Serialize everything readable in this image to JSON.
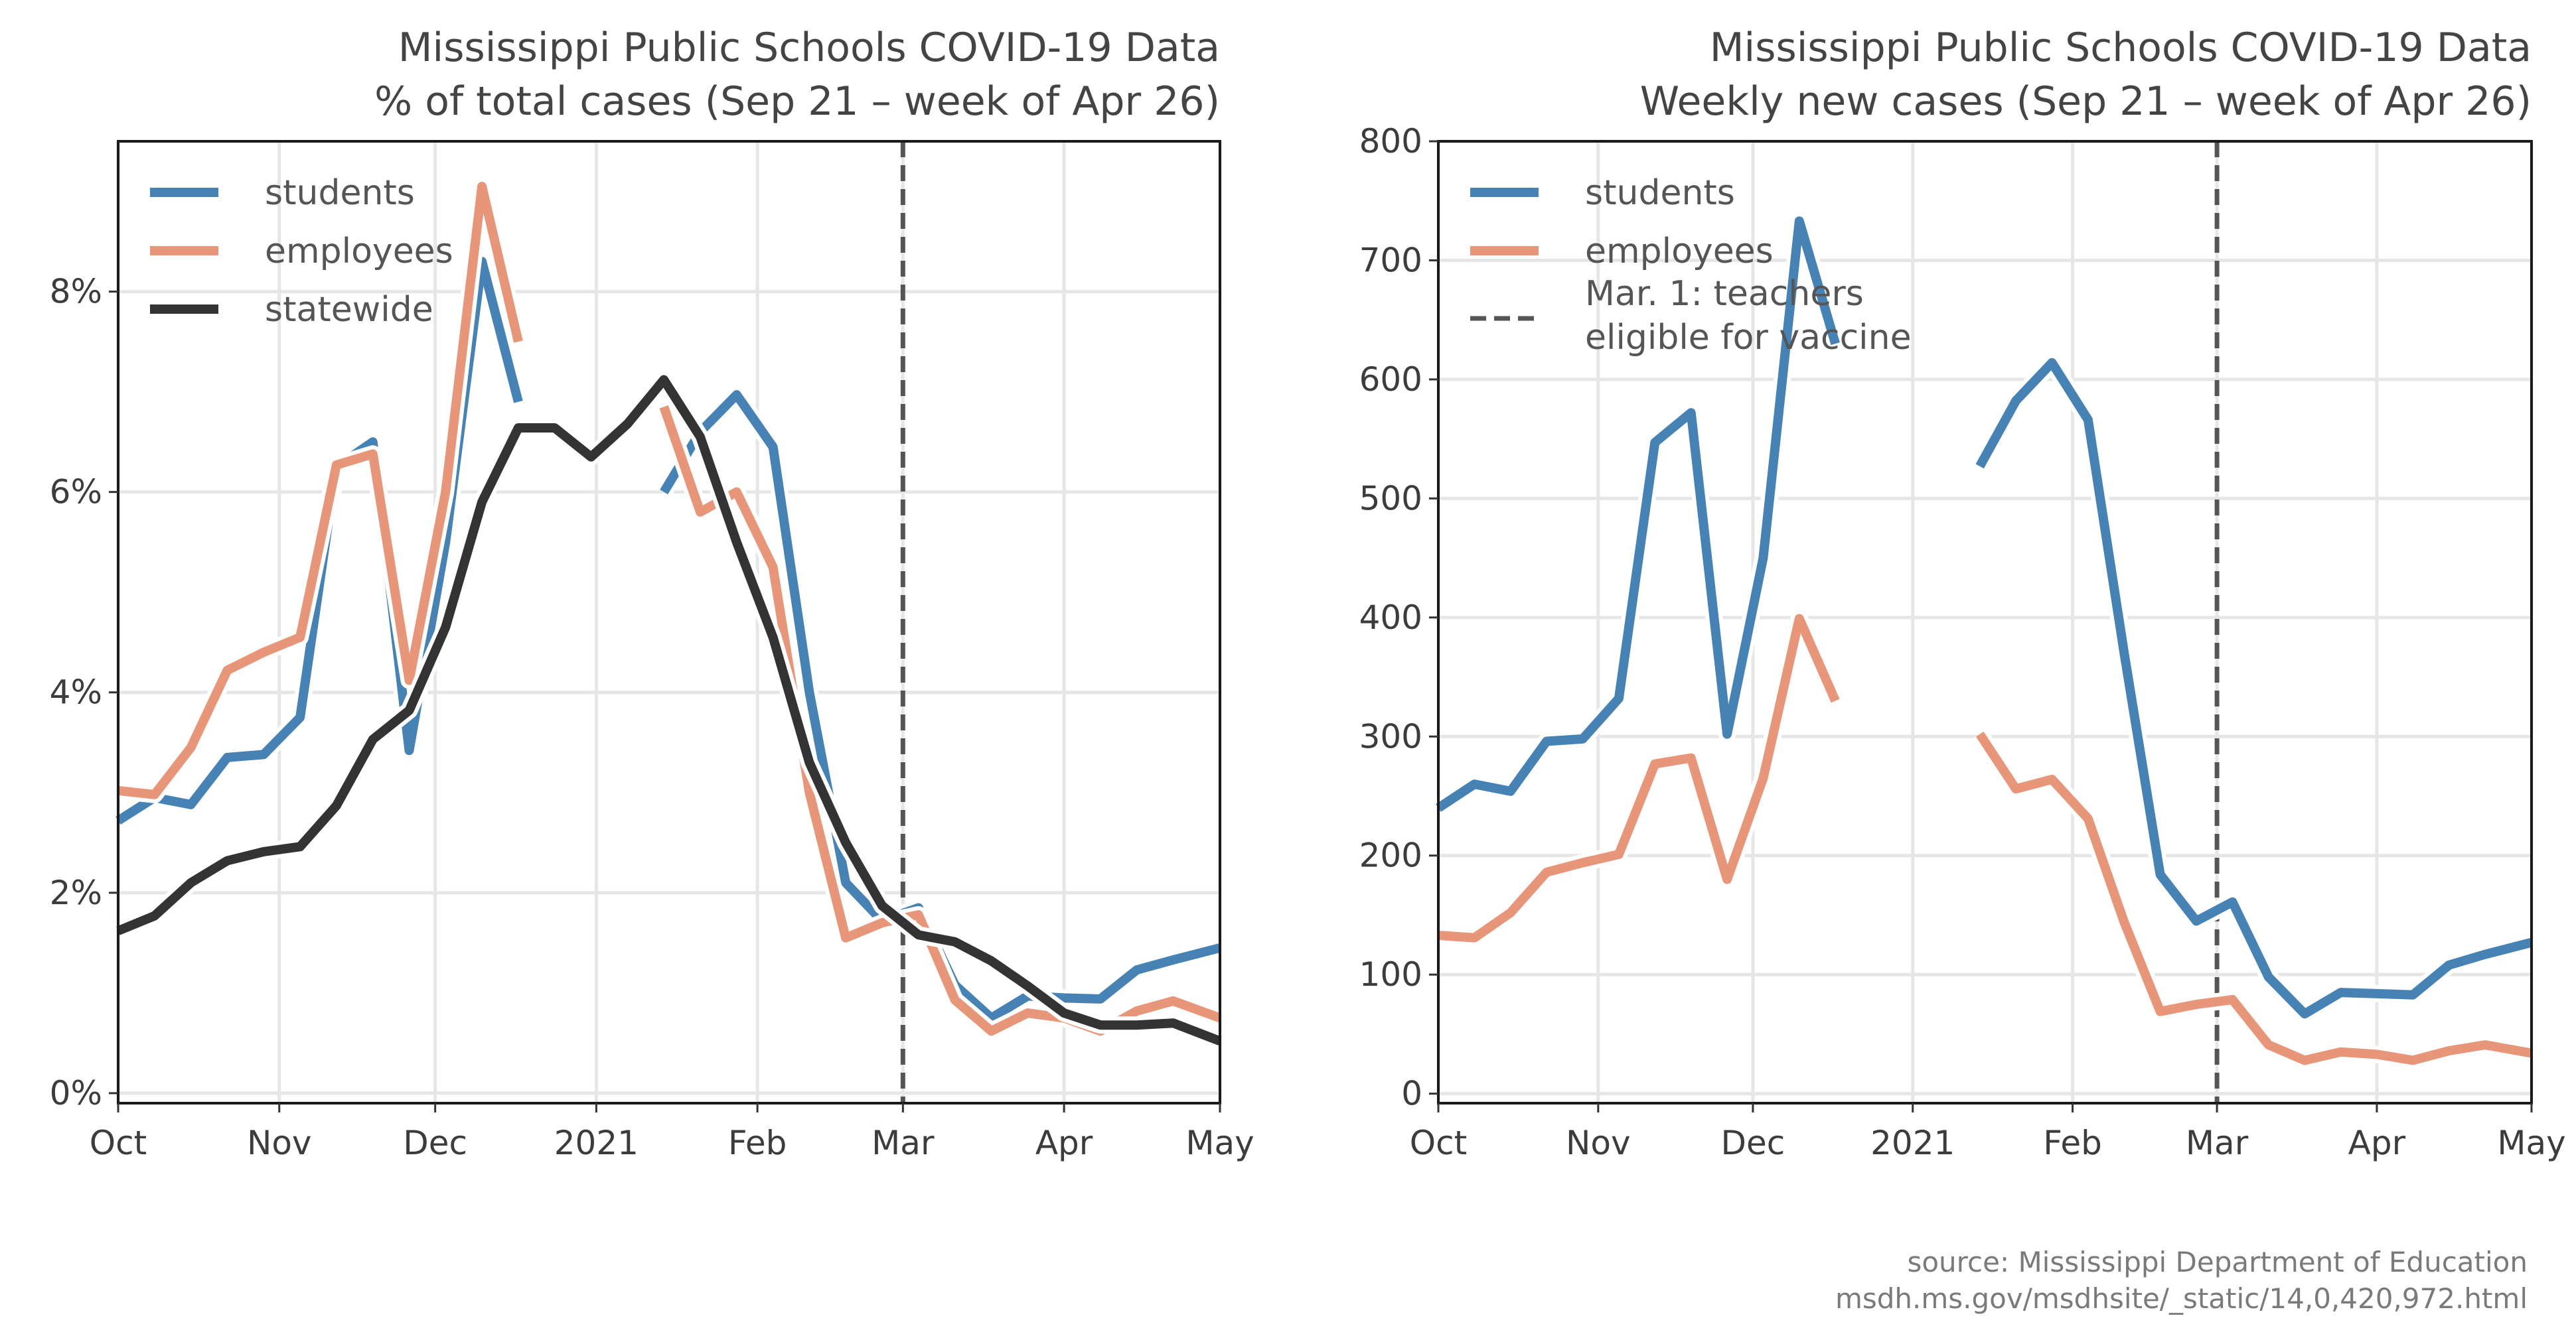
{
  "chart_data": [
    {
      "type": "line",
      "title": "Mississippi Public Schools COVID-19 Data",
      "subtitle": "% of total cases (Sep 21 – week of Apr 26)",
      "xlabel": "",
      "ylabel": "",
      "x_ticks": [
        "Oct",
        "Nov",
        "Dec",
        "2021",
        "Feb",
        "Mar",
        "Apr",
        "May"
      ],
      "y_ticks": [
        "0%",
        "2%",
        "4%",
        "6%",
        "8%"
      ],
      "ylim": [
        -0.1,
        9.5
      ],
      "xlim": [
        "2020-10-01",
        "2021-05-01"
      ],
      "grid": true,
      "legend": "top-left",
      "vline": {
        "date": "2021-03-01",
        "style": "dashed"
      },
      "series": [
        {
          "name": "students",
          "color": "#4682b4",
          "points": [
            [
              [
                "2020-10-01",
                2.72
              ],
              [
                "2020-10-08",
                2.95
              ],
              [
                "2020-10-15",
                2.88
              ],
              [
                "2020-10-22",
                3.35
              ],
              [
                "2020-10-29",
                3.38
              ],
              [
                "2020-11-05",
                3.75
              ],
              [
                "2020-11-12",
                6.25
              ],
              [
                "2020-11-19",
                6.5
              ],
              [
                "2020-11-26",
                3.42
              ],
              [
                "2020-12-03",
                5.5
              ],
              [
                "2020-12-10",
                8.3
              ],
              [
                "2020-12-17",
                6.9
              ]
            ],
            [
              [
                "2021-01-14",
                6.0
              ],
              [
                "2021-01-21",
                6.6
              ],
              [
                "2021-01-28",
                6.97
              ],
              [
                "2021-02-04",
                6.45
              ],
              [
                "2021-02-11",
                4.0
              ],
              [
                "2021-02-18",
                2.1
              ],
              [
                "2021-02-25",
                1.72
              ],
              [
                "2021-03-04",
                1.85
              ],
              [
                "2021-03-11",
                1.08
              ],
              [
                "2021-03-18",
                0.75
              ],
              [
                "2021-03-25",
                0.97
              ],
              [
                "2021-04-01",
                0.95
              ],
              [
                "2021-04-08",
                0.94
              ],
              [
                "2021-04-15",
                1.23
              ],
              [
                "2021-04-22",
                1.33
              ],
              [
                "2021-05-01",
                1.45
              ]
            ]
          ]
        },
        {
          "name": "employees",
          "color": "#e8967a",
          "points": [
            [
              [
                "2020-10-01",
                3.02
              ],
              [
                "2020-10-08",
                2.98
              ],
              [
                "2020-10-15",
                3.45
              ],
              [
                "2020-10-22",
                4.22
              ],
              [
                "2020-10-29",
                4.4
              ],
              [
                "2020-11-05",
                4.55
              ],
              [
                "2020-11-12",
                6.27
              ],
              [
                "2020-11-19",
                6.38
              ],
              [
                "2020-11-26",
                4.12
              ],
              [
                "2020-12-03",
                6.0
              ],
              [
                "2020-12-10",
                9.05
              ],
              [
                "2020-12-17",
                7.5
              ]
            ],
            [
              [
                "2021-01-14",
                6.85
              ],
              [
                "2021-01-21",
                5.8
              ],
              [
                "2021-01-28",
                6.0
              ],
              [
                "2021-02-04",
                5.25
              ],
              [
                "2021-02-11",
                3.0
              ],
              [
                "2021-02-18",
                1.55
              ],
              [
                "2021-02-25",
                1.7
              ],
              [
                "2021-03-04",
                1.78
              ],
              [
                "2021-03-11",
                0.93
              ],
              [
                "2021-03-18",
                0.62
              ],
              [
                "2021-03-25",
                0.8
              ],
              [
                "2021-04-01",
                0.75
              ],
              [
                "2021-04-08",
                0.62
              ],
              [
                "2021-04-15",
                0.82
              ],
              [
                "2021-04-22",
                0.92
              ],
              [
                "2021-05-01",
                0.75
              ]
            ]
          ]
        },
        {
          "name": "statewide",
          "color": "#333333",
          "points": [
            [
              [
                "2020-10-01",
                1.62
              ],
              [
                "2020-10-08",
                1.77
              ],
              [
                "2020-10-15",
                2.1
              ],
              [
                "2020-10-22",
                2.32
              ],
              [
                "2020-10-29",
                2.41
              ],
              [
                "2020-11-05",
                2.46
              ],
              [
                "2020-11-12",
                2.87
              ],
              [
                "2020-11-19",
                3.53
              ],
              [
                "2020-11-26",
                3.82
              ],
              [
                "2020-12-03",
                4.65
              ],
              [
                "2020-12-10",
                5.9
              ],
              [
                "2020-12-17",
                6.64
              ],
              [
                "2020-12-24",
                6.64
              ],
              [
                "2020-12-31",
                6.35
              ],
              [
                "2021-01-07",
                6.68
              ],
              [
                "2021-01-14",
                7.12
              ],
              [
                "2021-01-21",
                6.55
              ],
              [
                "2021-01-28",
                5.5
              ],
              [
                "2021-02-04",
                4.55
              ],
              [
                "2021-02-11",
                3.3
              ],
              [
                "2021-02-18",
                2.5
              ],
              [
                "2021-02-25",
                1.87
              ],
              [
                "2021-03-04",
                1.58
              ],
              [
                "2021-03-11",
                1.51
              ],
              [
                "2021-03-18",
                1.32
              ],
              [
                "2021-03-25",
                1.07
              ],
              [
                "2021-04-01",
                0.8
              ],
              [
                "2021-04-08",
                0.68
              ],
              [
                "2021-04-15",
                0.68
              ],
              [
                "2021-04-22",
                0.7
              ],
              [
                "2021-05-01",
                0.52
              ]
            ]
          ]
        }
      ]
    },
    {
      "type": "line",
      "title": "Mississippi Public Schools COVID-19 Data",
      "subtitle": "Weekly new cases (Sep 21 – week of Apr 26)",
      "xlabel": "",
      "ylabel": "",
      "x_ticks": [
        "Oct",
        "Nov",
        "Dec",
        "2021",
        "Feb",
        "Mar",
        "Apr",
        "May"
      ],
      "y_ticks": [
        "0",
        "100",
        "200",
        "300",
        "400",
        "500",
        "600",
        "700",
        "800"
      ],
      "ylim": [
        -8,
        800
      ],
      "xlim": [
        "2020-10-01",
        "2021-05-01"
      ],
      "grid": true,
      "legend": "top-left",
      "vline": {
        "date": "2021-03-01",
        "style": "dashed",
        "label": "Mar. 1: teachers\neligible for vaccine"
      },
      "series": [
        {
          "name": "students",
          "color": "#4682b4",
          "points": [
            [
              [
                "2020-10-01",
                240
              ],
              [
                "2020-10-08",
                260
              ],
              [
                "2020-10-15",
                254
              ],
              [
                "2020-10-22",
                296
              ],
              [
                "2020-10-29",
                298
              ],
              [
                "2020-11-05",
                332
              ],
              [
                "2020-11-12",
                547
              ],
              [
                "2020-11-19",
                572
              ],
              [
                "2020-11-26",
                302
              ],
              [
                "2020-12-03",
                450
              ],
              [
                "2020-12-10",
                733
              ],
              [
                "2020-12-17",
                630
              ]
            ],
            [
              [
                "2021-01-14",
                527
              ],
              [
                "2021-01-21",
                582
              ],
              [
                "2021-01-28",
                614
              ],
              [
                "2021-02-04",
                566
              ],
              [
                "2021-02-11",
                370
              ],
              [
                "2021-02-18",
                184
              ],
              [
                "2021-02-25",
                145
              ],
              [
                "2021-03-04",
                161
              ],
              [
                "2021-03-11",
                98
              ],
              [
                "2021-03-18",
                67
              ],
              [
                "2021-03-25",
                85
              ],
              [
                "2021-04-01",
                84
              ],
              [
                "2021-04-08",
                83
              ],
              [
                "2021-04-15",
                108
              ],
              [
                "2021-04-22",
                117
              ],
              [
                "2021-05-01",
                127
              ]
            ]
          ]
        },
        {
          "name": "employees",
          "color": "#e8967a",
          "points": [
            [
              [
                "2020-10-01",
                133
              ],
              [
                "2020-10-08",
                131
              ],
              [
                "2020-10-15",
                152
              ],
              [
                "2020-10-22",
                186
              ],
              [
                "2020-10-29",
                194
              ],
              [
                "2020-11-05",
                201
              ],
              [
                "2020-11-12",
                277
              ],
              [
                "2020-11-19",
                282
              ],
              [
                "2020-11-26",
                180
              ],
              [
                "2020-12-03",
                265
              ],
              [
                "2020-12-10",
                399
              ],
              [
                "2020-12-17",
                330
              ]
            ],
            [
              [
                "2021-01-14",
                302
              ],
              [
                "2021-01-21",
                256
              ],
              [
                "2021-01-28",
                264
              ],
              [
                "2021-02-04",
                231
              ],
              [
                "2021-02-11",
                144
              ],
              [
                "2021-02-18",
                69
              ],
              [
                "2021-02-25",
                75
              ],
              [
                "2021-03-04",
                79
              ],
              [
                "2021-03-11",
                41
              ],
              [
                "2021-03-18",
                28
              ],
              [
                "2021-03-25",
                35
              ],
              [
                "2021-04-01",
                33
              ],
              [
                "2021-04-08",
                28
              ],
              [
                "2021-04-15",
                36
              ],
              [
                "2021-04-22",
                41
              ],
              [
                "2021-05-01",
                34
              ]
            ]
          ]
        }
      ]
    }
  ],
  "source": {
    "line1": "source: Mississippi Department of Education",
    "line2": "msdh.ms.gov/msdhsite/_static/14,0,420,972.html"
  }
}
